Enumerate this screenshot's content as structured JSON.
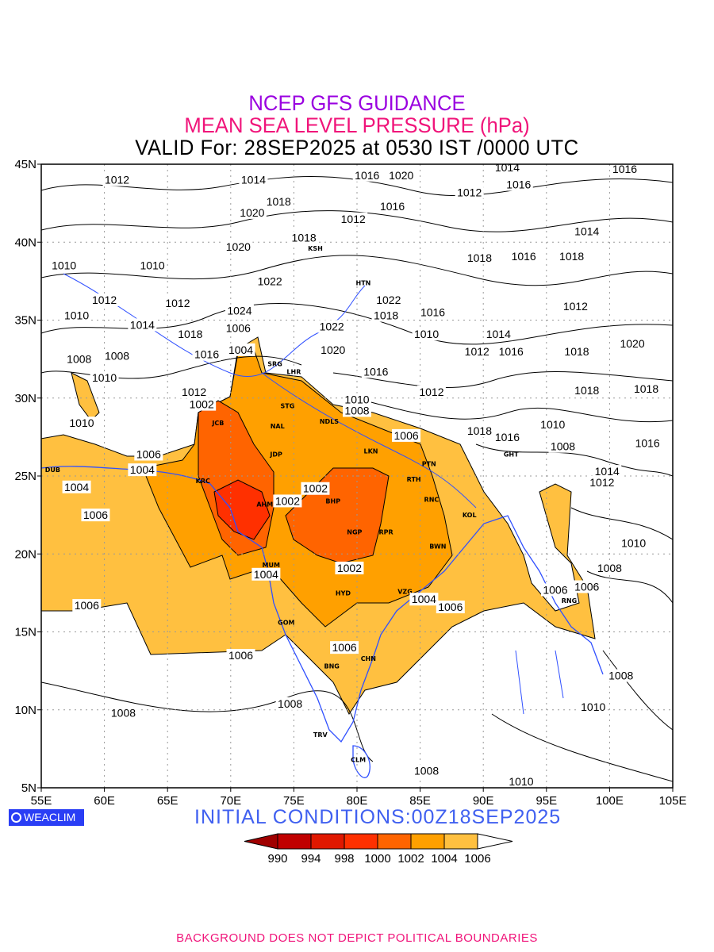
{
  "titles": {
    "line1": "NCEP GFS GUIDANCE",
    "line2": "MEAN SEA LEVEL PRESSURE (hPa)",
    "line3": "VALID For: 28SEP2025 at 0530 IST /0000 UTC"
  },
  "logo": "WEACLIM",
  "initial_conditions": "INITIAL  CONDITIONS:00Z18SEP2025",
  "footer": "BACKGROUND DOES NOT DEPICT POLITICAL BOUNDARIES",
  "chart_data": {
    "type": "contour-map",
    "variable": "Mean sea level pressure (hPa)",
    "lon_range": [
      55,
      105
    ],
    "lat_range": [
      5,
      45
    ],
    "x_ticks": [
      "55E",
      "60E",
      "65E",
      "70E",
      "75E",
      "80E",
      "85E",
      "90E",
      "95E",
      "100E",
      "105E"
    ],
    "y_ticks": [
      "45N",
      "40N",
      "35N",
      "30N",
      "25N",
      "20N",
      "15N",
      "10N",
      "5N"
    ],
    "grid": true,
    "colorbar": {
      "levels": [
        "990",
        "994",
        "998",
        "1000",
        "1002",
        "1004",
        "1006"
      ],
      "colors": [
        "#a00000",
        "#c00000",
        "#e01800",
        "#ff3000",
        "#ff6400",
        "#ffa000",
        "#ffc040",
        "#ffffff"
      ]
    },
    "contour_labels": [
      {
        "v": "1012",
        "lon": 61.0,
        "lat": 44.0
      },
      {
        "v": "1014",
        "lon": 71.8,
        "lat": 44.0
      },
      {
        "v": "1016",
        "lon": 80.8,
        "lat": 44.3
      },
      {
        "v": "1020",
        "lon": 83.5,
        "lat": 44.3
      },
      {
        "v": "1014",
        "lon": 91.9,
        "lat": 44.8
      },
      {
        "v": "1016",
        "lon": 101.2,
        "lat": 44.7
      },
      {
        "v": "1012",
        "lon": 88.9,
        "lat": 43.2
      },
      {
        "v": "1016",
        "lon": 92.8,
        "lat": 43.7
      },
      {
        "v": "1016",
        "lon": 82.8,
        "lat": 42.3
      },
      {
        "v": "1012",
        "lon": 79.7,
        "lat": 41.5
      },
      {
        "v": "1018",
        "lon": 73.8,
        "lat": 42.6
      },
      {
        "v": "1020",
        "lon": 71.7,
        "lat": 41.9
      },
      {
        "v": "1018",
        "lon": 75.8,
        "lat": 40.3
      },
      {
        "v": "1020",
        "lon": 70.6,
        "lat": 39.7
      },
      {
        "v": "1010",
        "lon": 56.8,
        "lat": 38.5
      },
      {
        "v": "1010",
        "lon": 63.8,
        "lat": 38.5
      },
      {
        "v": "1018",
        "lon": 89.7,
        "lat": 39.0
      },
      {
        "v": "1016",
        "lon": 93.2,
        "lat": 39.1
      },
      {
        "v": "1018",
        "lon": 97.0,
        "lat": 39.1
      },
      {
        "v": "1014",
        "lon": 98.2,
        "lat": 40.7
      },
      {
        "v": "1022",
        "lon": 73.1,
        "lat": 37.5
      },
      {
        "v": "1012",
        "lon": 60.0,
        "lat": 36.3
      },
      {
        "v": "1012",
        "lon": 65.8,
        "lat": 36.1
      },
      {
        "v": "1022",
        "lon": 82.5,
        "lat": 36.3
      },
      {
        "v": "1018",
        "lon": 82.3,
        "lat": 35.3
      },
      {
        "v": "1016",
        "lon": 86.0,
        "lat": 35.5
      },
      {
        "v": "1012",
        "lon": 97.3,
        "lat": 35.9
      },
      {
        "v": "1010",
        "lon": 57.8,
        "lat": 35.3
      },
      {
        "v": "1014",
        "lon": 63.0,
        "lat": 34.7
      },
      {
        "v": "1024",
        "lon": 70.7,
        "lat": 35.6
      },
      {
        "v": "1006",
        "lon": 70.6,
        "lat": 34.5
      },
      {
        "v": "1022",
        "lon": 78.0,
        "lat": 34.6
      },
      {
        "v": "1010",
        "lon": 85.5,
        "lat": 34.1
      },
      {
        "v": "1014",
        "lon": 91.2,
        "lat": 34.1
      },
      {
        "v": "1018",
        "lon": 66.8,
        "lat": 34.1
      },
      {
        "v": "1016",
        "lon": 68.1,
        "lat": 32.8
      },
      {
        "v": "1004",
        "lon": 70.8,
        "lat": 33.1
      },
      {
        "v": "1020",
        "lon": 78.1,
        "lat": 33.1
      },
      {
        "v": "1012",
        "lon": 89.5,
        "lat": 33.0
      },
      {
        "v": "1016",
        "lon": 92.2,
        "lat": 33.0
      },
      {
        "v": "1018",
        "lon": 97.4,
        "lat": 33.0
      },
      {
        "v": "1020",
        "lon": 101.8,
        "lat": 33.5
      },
      {
        "v": "1008",
        "lon": 58.0,
        "lat": 32.5
      },
      {
        "v": "1008",
        "lon": 61.0,
        "lat": 32.7
      },
      {
        "v": "1010",
        "lon": 60.0,
        "lat": 31.3
      },
      {
        "v": "1016",
        "lon": 81.5,
        "lat": 31.7
      },
      {
        "v": "1012",
        "lon": 85.9,
        "lat": 30.4
      },
      {
        "v": "1018",
        "lon": 98.2,
        "lat": 30.5
      },
      {
        "v": "1018",
        "lon": 102.9,
        "lat": 30.6
      },
      {
        "v": "1012",
        "lon": 67.1,
        "lat": 30.4
      },
      {
        "v": "1002",
        "lon": 67.7,
        "lat": 29.6
      },
      {
        "v": "1010",
        "lon": 80.0,
        "lat": 29.9
      },
      {
        "v": "1008",
        "lon": 80.0,
        "lat": 29.2
      },
      {
        "v": "1010",
        "lon": 58.2,
        "lat": 28.4
      },
      {
        "v": "1006",
        "lon": 83.9,
        "lat": 27.6
      },
      {
        "v": "1018",
        "lon": 89.7,
        "lat": 27.9
      },
      {
        "v": "1016",
        "lon": 91.9,
        "lat": 27.5
      },
      {
        "v": "1010",
        "lon": 95.5,
        "lat": 28.3
      },
      {
        "v": "1008",
        "lon": 96.3,
        "lat": 26.9
      },
      {
        "v": "1016",
        "lon": 103.0,
        "lat": 27.1
      },
      {
        "v": "1006",
        "lon": 63.5,
        "lat": 26.4
      },
      {
        "v": "1004",
        "lon": 63.0,
        "lat": 25.4
      },
      {
        "v": "1014",
        "lon": 99.8,
        "lat": 25.3
      },
      {
        "v": "1012",
        "lon": 99.4,
        "lat": 24.6
      },
      {
        "v": "1004",
        "lon": 57.8,
        "lat": 24.3
      },
      {
        "v": "1002",
        "lon": 76.7,
        "lat": 24.2
      },
      {
        "v": "1002",
        "lon": 74.5,
        "lat": 23.4
      },
      {
        "v": "1006",
        "lon": 59.3,
        "lat": 22.5
      },
      {
        "v": "1010",
        "lon": 101.9,
        "lat": 20.7
      },
      {
        "v": "1002",
        "lon": 79.4,
        "lat": 19.1
      },
      {
        "v": "1004",
        "lon": 72.8,
        "lat": 18.7
      },
      {
        "v": "1008",
        "lon": 100.0,
        "lat": 19.1
      },
      {
        "v": "1006",
        "lon": 95.7,
        "lat": 17.7
      },
      {
        "v": "1006",
        "lon": 98.2,
        "lat": 17.9
      },
      {
        "v": "1004",
        "lon": 85.3,
        "lat": 17.1
      },
      {
        "v": "1006",
        "lon": 58.6,
        "lat": 16.7
      },
      {
        "v": "1006",
        "lon": 87.4,
        "lat": 16.6
      },
      {
        "v": "1006",
        "lon": 79.0,
        "lat": 14.0
      },
      {
        "v": "1006",
        "lon": 70.8,
        "lat": 13.5
      },
      {
        "v": "1008",
        "lon": 100.9,
        "lat": 12.2
      },
      {
        "v": "1008",
        "lon": 74.7,
        "lat": 10.4
      },
      {
        "v": "1010",
        "lon": 98.7,
        "lat": 10.2
      },
      {
        "v": "1008",
        "lon": 61.5,
        "lat": 9.8
      },
      {
        "v": "1008",
        "lon": 85.5,
        "lat": 6.1
      },
      {
        "v": "1010",
        "lon": 93.0,
        "lat": 5.4
      }
    ],
    "stations": [
      {
        "code": "KSH",
        "lon": 76.7,
        "lat": 39.6
      },
      {
        "code": "HTN",
        "lon": 80.5,
        "lat": 37.4
      },
      {
        "code": "SRG",
        "lon": 73.5,
        "lat": 32.2
      },
      {
        "code": "LHR",
        "lon": 75.0,
        "lat": 31.7
      },
      {
        "code": "STG",
        "lon": 74.5,
        "lat": 29.5
      },
      {
        "code": "NDLS",
        "lon": 77.8,
        "lat": 28.5
      },
      {
        "code": "JCB",
        "lon": 69.0,
        "lat": 28.4
      },
      {
        "code": "NAL",
        "lon": 73.7,
        "lat": 28.2
      },
      {
        "code": "JDP",
        "lon": 73.6,
        "lat": 26.4
      },
      {
        "code": "LKN",
        "lon": 81.1,
        "lat": 26.6
      },
      {
        "code": "PTN",
        "lon": 85.7,
        "lat": 25.8
      },
      {
        "code": "DUB",
        "lon": 55.9,
        "lat": 25.4
      },
      {
        "code": "KRC",
        "lon": 67.8,
        "lat": 24.7
      },
      {
        "code": "RTH",
        "lon": 84.5,
        "lat": 24.8
      },
      {
        "code": "BHP",
        "lon": 78.1,
        "lat": 23.4
      },
      {
        "code": "AHM",
        "lon": 72.7,
        "lat": 23.2
      },
      {
        "code": "RNC",
        "lon": 85.9,
        "lat": 23.5
      },
      {
        "code": "KOL",
        "lon": 88.9,
        "lat": 22.5
      },
      {
        "code": "NGP",
        "lon": 79.8,
        "lat": 21.4
      },
      {
        "code": "RPR",
        "lon": 82.3,
        "lat": 21.4
      },
      {
        "code": "BWN",
        "lon": 86.4,
        "lat": 20.5
      },
      {
        "code": "MUM",
        "lon": 73.2,
        "lat": 19.3
      },
      {
        "code": "HYD",
        "lon": 78.9,
        "lat": 17.5
      },
      {
        "code": "VZG",
        "lon": 83.8,
        "lat": 17.6
      },
      {
        "code": "GOM",
        "lon": 74.4,
        "lat": 15.6
      },
      {
        "code": "CHN",
        "lon": 80.9,
        "lat": 13.3
      },
      {
        "code": "BNG",
        "lon": 78.0,
        "lat": 12.8
      },
      {
        "code": "TRV",
        "lon": 77.1,
        "lat": 8.4
      },
      {
        "code": "CLM",
        "lon": 80.1,
        "lat": 6.8
      },
      {
        "code": "GHT",
        "lon": 92.2,
        "lat": 26.4
      },
      {
        "code": "RNG",
        "lon": 96.8,
        "lat": 17.0
      }
    ]
  }
}
